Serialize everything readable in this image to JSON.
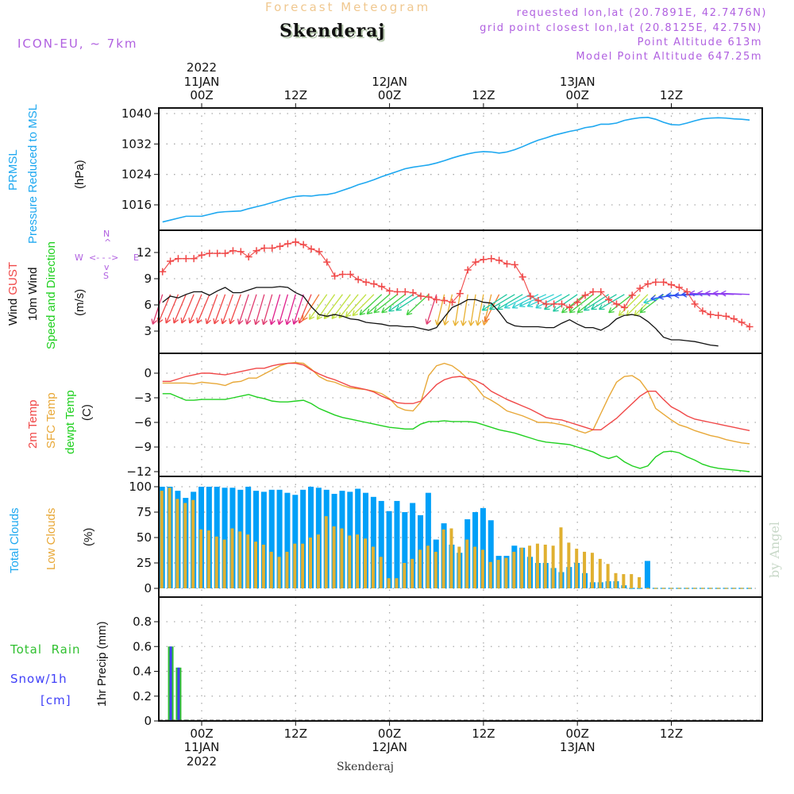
{
  "header": {
    "title": "Forecast Meteogram",
    "station": "Skenderaj",
    "model": "ICON-EU, ~ 7km",
    "requested": "requested lon,lat (20.7891E, 42.7476N)",
    "grid_point": "grid point closest lon,lat (20.8125E, 42.75N)",
    "point_altitude": "Point Altitude 613m",
    "model_altitude": "Model Point Altitude 647.25m"
  },
  "top_axis": {
    "year": "2022",
    "ticks": [
      {
        "hour": 0,
        "lines": [
          "11JAN",
          "00Z"
        ]
      },
      {
        "hour": 12,
        "lines": [
          "12Z"
        ]
      },
      {
        "hour": 24,
        "lines": [
          "12JAN",
          "00Z"
        ]
      },
      {
        "hour": 36,
        "lines": [
          "12Z"
        ]
      },
      {
        "hour": 48,
        "lines": [
          "13JAN",
          "00Z"
        ]
      },
      {
        "hour": 60,
        "lines": [
          "12Z"
        ]
      }
    ]
  },
  "bottom_axis": {
    "year": "2022",
    "ticks": [
      {
        "hour": 0,
        "lines": [
          "00Z",
          "11JAN"
        ]
      },
      {
        "hour": 12,
        "lines": [
          "12Z"
        ]
      },
      {
        "hour": 24,
        "lines": [
          "00Z",
          "12JAN"
        ]
      },
      {
        "hour": 36,
        "lines": [
          "12Z"
        ]
      },
      {
        "hour": 48,
        "lines": [
          "00Z",
          "13JAN"
        ]
      },
      {
        "hour": 60,
        "lines": [
          "12Z"
        ]
      }
    ],
    "footer": "Skenderaj"
  },
  "labels": {
    "pressure": {
      "line1": "PRMSL",
      "line2": "Pressure Reduced to MSL",
      "unit": "(hPa)"
    },
    "wind": {
      "line1": "Wind GUST",
      "line2": "10m Wind",
      "line3": "Speed and Direction",
      "unit": "(m/s)"
    },
    "compass": {
      "n": "N",
      "s": "S",
      "e": "E",
      "w": "W",
      "arrows_h": "<- - ->",
      "up": "^",
      "down": "v"
    },
    "temp": {
      "line1": "2m Temp",
      "line2": "SFC Temp",
      "line3": "dewpt Temp",
      "unit": "(C)"
    },
    "clouds": {
      "line1": "Total Clouds",
      "line2": "Low Clouds",
      "unit": "(%)"
    },
    "precip": {
      "line1": "Total  Rain",
      "line2": "Snow/1h",
      "line3": "[cm]",
      "unit": "1hr Precip (mm)"
    },
    "watermark": "by Angel"
  },
  "colors": {
    "pressure": "#1ea8f0",
    "gust": "#f04848",
    "wind": "#111111",
    "t2m": "#f04848",
    "tsfc": "#e8a838",
    "dewpt": "#20d020",
    "total_clouds": "#00a0f8",
    "low_clouds": "#e0b030",
    "rain": "#30c030",
    "snow": "#4040f8",
    "label_purple": "#b060e0"
  },
  "chart_data": [
    {
      "type": "line",
      "title": "PRMSL Pressure Reduced to MSL",
      "ylabel": "(hPa)",
      "ylim": [
        1010,
        1041.5
      ],
      "yticks": [
        1016,
        1024,
        1032,
        1040
      ],
      "x_hours_start": -5,
      "x_step_h": 1,
      "series": [
        {
          "name": "PRMSL",
          "values": [
            1011.5,
            1012,
            1012.5,
            1013,
            1013,
            1013,
            1013.5,
            1014,
            1014.2,
            1014.3,
            1014.4,
            1015,
            1015.5,
            1016,
            1016.6,
            1017.2,
            1017.8,
            1018.2,
            1018.4,
            1018.3,
            1018.6,
            1018.7,
            1019.1,
            1019.8,
            1020.5,
            1021.3,
            1021.9,
            1022.6,
            1023.4,
            1024.1,
            1024.8,
            1025.5,
            1025.9,
            1026.2,
            1026.5,
            1027,
            1027.6,
            1028.3,
            1028.9,
            1029.4,
            1029.8,
            1030,
            1029.9,
            1029.6,
            1029.9,
            1030.5,
            1031.3,
            1032.2,
            1033,
            1033.6,
            1034.3,
            1034.8,
            1035.3,
            1035.7,
            1036.3,
            1036.6,
            1037.2,
            1037.2,
            1037.5,
            1038.2,
            1038.6,
            1038.9,
            1039,
            1038.5,
            1037.7,
            1037.1,
            1037,
            1037.5,
            1038.1,
            1038.6,
            1038.8,
            1038.9,
            1038.8,
            1038.6,
            1038.5,
            1038.3
          ]
        }
      ]
    },
    {
      "type": "line",
      "title": "Wind GUST / 10m Wind Speed and Direction",
      "ylabel": "(m/s)",
      "ylim": [
        0.3,
        14.2
      ],
      "yticks": [
        3,
        6,
        9,
        12
      ],
      "x_hours_start": -5,
      "x_step_h": 1,
      "series": [
        {
          "name": "Wind GUST",
          "values": [
            9.8,
            11,
            11.3,
            11.3,
            11.3,
            11.7,
            11.9,
            11.9,
            11.9,
            12.2,
            12.1,
            11.5,
            12.2,
            12.5,
            12.5,
            12.7,
            13,
            13.2,
            12.9,
            12.4,
            12.1,
            10.9,
            9.3,
            9.5,
            9.5,
            8.9,
            8.6,
            8.4,
            8.1,
            7.6,
            7.5,
            7.5,
            7.4,
            7,
            6.9,
            6.6,
            6.5,
            6.3,
            7.3,
            10,
            10.9,
            11.2,
            11.3,
            11.1,
            10.7,
            10.6,
            9.2,
            7,
            6.5,
            6.1,
            6.1,
            6.1,
            5.7,
            6.3,
            7.1,
            7.5,
            7.5,
            6.6,
            6.1,
            5.7,
            7.1,
            7.9,
            8.4,
            8.6,
            8.6,
            8.3,
            8,
            7.5,
            6.1,
            5.3,
            4.9,
            4.8,
            4.7,
            4.4,
            4,
            3.5
          ]
        },
        {
          "name": "10m Wind",
          "values": [
            6.3,
            7,
            6.8,
            7.2,
            7.5,
            7.5,
            7.1,
            7.6,
            8,
            7.4,
            7.4,
            7.7,
            8,
            8,
            8,
            8.1,
            8,
            7.4,
            7,
            5.8,
            4.9,
            4.7,
            4.9,
            4.7,
            4.4,
            4.3,
            4,
            3.9,
            3.8,
            3.6,
            3.6,
            3.5,
            3.5,
            3.3,
            3.1,
            3.4,
            4.6,
            5.7,
            6.1,
            6.6,
            6.6,
            6.3,
            6.2,
            5.2,
            4,
            3.6,
            3.5,
            3.5,
            3.5,
            3.4,
            3.4,
            3.9,
            4.3,
            3.8,
            3.4,
            3.4,
            3.1,
            3.6,
            4.4,
            4.8,
            4.9,
            4.7,
            4.1,
            3.3,
            2.3,
            2,
            2,
            1.9,
            1.8,
            1.6,
            1.4,
            1.3
          ]
        },
        {
          "name": "Wind Direction (deg, from)",
          "values": [
            20,
            25,
            25,
            25,
            25,
            25,
            25,
            22,
            22,
            22,
            22,
            20,
            20,
            18,
            18,
            18,
            18,
            18,
            20,
            25,
            35,
            38,
            38,
            40,
            40,
            42,
            45,
            48,
            50,
            52,
            55,
            55,
            58,
            60,
            50,
            20,
            15,
            15,
            10,
            10,
            10,
            12,
            15,
            30,
            60,
            62,
            62,
            65,
            65,
            68,
            68,
            65,
            62,
            58,
            55,
            55,
            55,
            60,
            62,
            62,
            55,
            48,
            48,
            48,
            55,
            75,
            82,
            85,
            88,
            88,
            90,
            92,
            92,
            92,
            92,
            92
          ]
        }
      ]
    },
    {
      "type": "line",
      "title": "2m Temp / SFC Temp / dewpt Temp",
      "ylabel": "(C)",
      "ylim": [
        -12.2,
        1.6
      ],
      "yticks": [
        0,
        -3,
        -6,
        -9,
        -12
      ],
      "x_hours_start": -5,
      "x_step_h": 1,
      "series": [
        {
          "name": "2m Temp",
          "values": [
            -1,
            -1,
            -0.7,
            -0.4,
            -0.2,
            0,
            0,
            -0.1,
            -0.2,
            0,
            0.2,
            0.4,
            0.6,
            0.6,
            0.9,
            1.1,
            1.2,
            1.2,
            1,
            0.4,
            -0.1,
            -0.5,
            -0.8,
            -1.2,
            -1.6,
            -1.8,
            -2,
            -2.3,
            -2.8,
            -3.2,
            -3.6,
            -3.7,
            -3.7,
            -3.4,
            -2.4,
            -1.4,
            -0.8,
            -0.5,
            -0.4,
            -0.6,
            -0.9,
            -1.4,
            -2.2,
            -2.7,
            -3.2,
            -3.6,
            -4,
            -4.4,
            -4.9,
            -5.4,
            -5.6,
            -5.7,
            -6,
            -6.3,
            -6.6,
            -6.9,
            -6.9,
            -6.2,
            -5.5,
            -4.6,
            -3.7,
            -2.8,
            -2.2,
            -2.2,
            -3.2,
            -4.1,
            -4.6,
            -5.2,
            -5.6,
            -5.8,
            -6,
            -6.2,
            -6.4,
            -6.6,
            -6.8,
            -7
          ]
        },
        {
          "name": "SFC Temp",
          "values": [
            -1.2,
            -1.2,
            -1.2,
            -1.2,
            -1.3,
            -1.1,
            -1.2,
            -1.3,
            -1.5,
            -1.1,
            -1,
            -0.6,
            -0.6,
            -0.1,
            0.4,
            0.9,
            1.2,
            1.3,
            1.2,
            0.5,
            -0.4,
            -0.9,
            -1.1,
            -1.5,
            -1.8,
            -1.9,
            -2,
            -2.2,
            -2.5,
            -3.1,
            -4.1,
            -4.5,
            -4.6,
            -3.5,
            -0.3,
            0.9,
            1.2,
            0.9,
            0.2,
            -0.7,
            -1.6,
            -2.8,
            -3.3,
            -3.9,
            -4.6,
            -4.9,
            -5.2,
            -5.6,
            -6,
            -6,
            -6.1,
            -6.3,
            -6.6,
            -7,
            -7.3,
            -6.9,
            -4.9,
            -2.9,
            -1.1,
            -0.4,
            -0.3,
            -0.9,
            -2.2,
            -4.3,
            -5,
            -5.7,
            -6.3,
            -6.6,
            -7,
            -7.3,
            -7.6,
            -7.8,
            -8.1,
            -8.3,
            -8.5,
            -8.6
          ]
        },
        {
          "name": "dewpt Temp",
          "values": [
            -2.5,
            -2.5,
            -2.9,
            -3.3,
            -3.3,
            -3.2,
            -3.2,
            -3.2,
            -3.2,
            -3,
            -2.8,
            -2.6,
            -2.9,
            -3.1,
            -3.4,
            -3.5,
            -3.5,
            -3.4,
            -3.3,
            -3.7,
            -4.3,
            -4.7,
            -5.1,
            -5.4,
            -5.6,
            -5.8,
            -6,
            -6.2,
            -6.4,
            -6.6,
            -6.7,
            -6.8,
            -6.8,
            -6.2,
            -5.9,
            -5.9,
            -5.8,
            -5.9,
            -5.9,
            -5.9,
            -6,
            -6.3,
            -6.6,
            -6.9,
            -7.1,
            -7.3,
            -7.6,
            -7.9,
            -8.2,
            -8.4,
            -8.5,
            -8.6,
            -8.7,
            -9,
            -9.3,
            -9.6,
            -10.1,
            -10.4,
            -10.1,
            -10.8,
            -11.3,
            -11.6,
            -11.3,
            -10.2,
            -9.6,
            -9.5,
            -9.7,
            -10.2,
            -10.6,
            -11.1,
            -11.4,
            -11.6,
            -11.7,
            -11.8,
            -11.9,
            -12
          ]
        }
      ]
    },
    {
      "type": "bar",
      "title": "Total Clouds / Low Clouds",
      "ylabel": "(%)",
      "ylim": [
        0,
        104
      ],
      "yticks": [
        0,
        25,
        50,
        75,
        100
      ],
      "x_hours_start": -5,
      "x_step_h": 1,
      "series": [
        {
          "name": "Total Clouds",
          "values": [
            100,
            100,
            96,
            89,
            95,
            100,
            100,
            100,
            99,
            99,
            97,
            100,
            96,
            95,
            97,
            97,
            94,
            92,
            97,
            100,
            99,
            97,
            93,
            96,
            95,
            98,
            94,
            90,
            86,
            76,
            86,
            75,
            84,
            72,
            94,
            48,
            64,
            43,
            35,
            68,
            75,
            79,
            67,
            32,
            32,
            42,
            40,
            31,
            25,
            25,
            20,
            16,
            21,
            25,
            15,
            6,
            6,
            7,
            7,
            3,
            0,
            0,
            27,
            0,
            0,
            0,
            0,
            0,
            0,
            0,
            0,
            0,
            0,
            0,
            0,
            0
          ]
        },
        {
          "name": "Low Clouds",
          "values": [
            96,
            99,
            88,
            84,
            87,
            58,
            57,
            51,
            48,
            59,
            56,
            53,
            46,
            43,
            36,
            31,
            36,
            44,
            44,
            50,
            53,
            71,
            61,
            59,
            52,
            53,
            49,
            41,
            31,
            10,
            10,
            25,
            29,
            38,
            42,
            36,
            58,
            59,
            41,
            48,
            41,
            38,
            26,
            28,
            30,
            36,
            40,
            42,
            44,
            43,
            42,
            60,
            45,
            39,
            36,
            35,
            29,
            24,
            15,
            14,
            14,
            11,
            0,
            0,
            0,
            0,
            0,
            0,
            0,
            0,
            0,
            0,
            0,
            0,
            0,
            0
          ]
        }
      ]
    },
    {
      "type": "bar",
      "title": "1hr Precip",
      "ylabel": "1hr Precip (mm)",
      "ylim": [
        0,
        0.95
      ],
      "yticks": [
        0,
        0.2,
        0.4,
        0.6,
        0.8
      ],
      "x_hours_start": -5,
      "x_step_h": 1,
      "series": [
        {
          "name": "Total Rain",
          "values": [
            0,
            0.6,
            0.43,
            0.01,
            0,
            0,
            0,
            0,
            0,
            0,
            0,
            0,
            0,
            0,
            0,
            0,
            0,
            0,
            0,
            0,
            0,
            0,
            0,
            0,
            0,
            0,
            0,
            0,
            0,
            0,
            0,
            0,
            0,
            0,
            0,
            0,
            0,
            0,
            0,
            0,
            0,
            0,
            0,
            0,
            0,
            0,
            0,
            0,
            0,
            0,
            0,
            0,
            0,
            0,
            0,
            0,
            0,
            0,
            0,
            0,
            0,
            0,
            0,
            0,
            0,
            0,
            0,
            0,
            0,
            0,
            0,
            0,
            0,
            0,
            0,
            0
          ]
        },
        {
          "name": "Snow/1h",
          "values": [
            0,
            0.6,
            0.43,
            0.01,
            0,
            0,
            0,
            0,
            0,
            0,
            0,
            0,
            0,
            0,
            0,
            0,
            0,
            0,
            0,
            0,
            0,
            0,
            0,
            0,
            0,
            0,
            0,
            0,
            0,
            0,
            0,
            0,
            0,
            0,
            0,
            0,
            0,
            0,
            0,
            0,
            0,
            0,
            0,
            0,
            0,
            0,
            0,
            0,
            0,
            0,
            0,
            0,
            0,
            0,
            0,
            0,
            0,
            0,
            0,
            0,
            0,
            0,
            0,
            0,
            0,
            0,
            0,
            0,
            0,
            0,
            0,
            0,
            0,
            0,
            0,
            0
          ]
        }
      ]
    }
  ]
}
